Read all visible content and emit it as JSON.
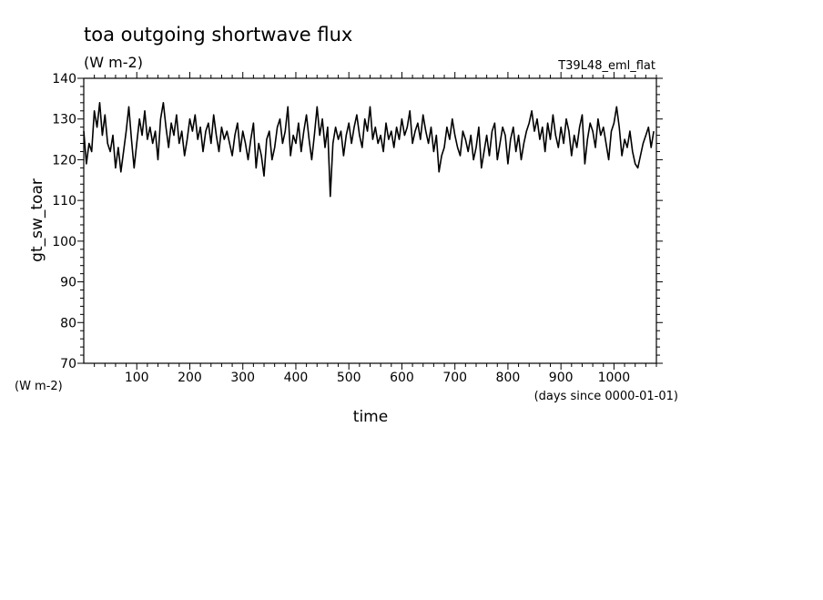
{
  "chart_data": {
    "type": "line",
    "title": "toa outgoing shortwave flux",
    "subtitle": "(W m-2)",
    "run_label": "T39L48_eml_flat",
    "ylabel": "gt_sw_toar",
    "y_unit_label": "(W m-2)",
    "xlabel": "time",
    "x_unit_label": "(days since 0000-01-01)",
    "xlim": [
      0,
      1080
    ],
    "ylim": [
      70,
      140
    ],
    "x_ticks": [
      100,
      200,
      300,
      400,
      500,
      600,
      700,
      800,
      900,
      1000
    ],
    "y_ticks": [
      70,
      80,
      90,
      100,
      110,
      120,
      130,
      140
    ],
    "grid": false,
    "series": [
      {
        "color": "#000000",
        "x": [
          0,
          5,
          10,
          15,
          20,
          25,
          30,
          35,
          40,
          45,
          50,
          55,
          60,
          65,
          70,
          75,
          80,
          85,
          90,
          95,
          100,
          105,
          110,
          115,
          120,
          125,
          130,
          135,
          140,
          145,
          150,
          155,
          160,
          165,
          170,
          175,
          180,
          185,
          190,
          195,
          200,
          205,
          210,
          215,
          220,
          225,
          230,
          235,
          240,
          245,
          250,
          255,
          260,
          265,
          270,
          275,
          280,
          285,
          290,
          295,
          300,
          305,
          310,
          315,
          320,
          325,
          330,
          335,
          340,
          345,
          350,
          355,
          360,
          365,
          370,
          375,
          380,
          385,
          390,
          395,
          400,
          405,
          410,
          415,
          420,
          425,
          430,
          435,
          440,
          445,
          450,
          455,
          460,
          465,
          470,
          475,
          480,
          485,
          490,
          495,
          500,
          505,
          510,
          515,
          520,
          525,
          530,
          535,
          540,
          545,
          550,
          555,
          560,
          565,
          570,
          575,
          580,
          585,
          590,
          595,
          600,
          605,
          610,
          615,
          620,
          625,
          630,
          635,
          640,
          645,
          650,
          655,
          660,
          665,
          670,
          675,
          680,
          685,
          690,
          695,
          700,
          705,
          710,
          715,
          720,
          725,
          730,
          735,
          740,
          745,
          750,
          755,
          760,
          765,
          770,
          775,
          780,
          785,
          790,
          795,
          800,
          805,
          810,
          815,
          820,
          825,
          830,
          835,
          840,
          845,
          850,
          855,
          860,
          865,
          870,
          875,
          880,
          885,
          890,
          895,
          900,
          905,
          910,
          915,
          920,
          925,
          930,
          935,
          940,
          945,
          950,
          955,
          960,
          965,
          970,
          975,
          980,
          985,
          990,
          995,
          1000,
          1005,
          1010,
          1015,
          1020,
          1025,
          1030,
          1035,
          1040,
          1045,
          1050,
          1055,
          1060,
          1065,
          1070,
          1075
        ],
        "values": [
          127,
          119,
          124,
          122,
          132,
          128,
          134,
          126,
          131,
          124,
          122,
          126,
          118,
          123,
          117,
          122,
          127,
          133,
          125,
          118,
          124,
          130,
          126,
          132,
          125,
          128,
          124,
          127,
          120,
          130,
          134,
          128,
          123,
          129,
          126,
          131,
          124,
          127,
          121,
          125,
          130,
          127,
          131,
          125,
          128,
          122,
          127,
          129,
          124,
          131,
          126,
          122,
          128,
          125,
          127,
          124,
          121,
          126,
          129,
          122,
          127,
          124,
          120,
          125,
          129,
          118,
          124,
          121,
          116,
          125,
          127,
          120,
          123,
          128,
          130,
          124,
          127,
          133,
          121,
          126,
          124,
          129,
          122,
          127,
          131,
          125,
          120,
          126,
          133,
          126,
          130,
          123,
          128,
          111,
          124,
          128,
          125,
          127,
          121,
          126,
          129,
          124,
          128,
          131,
          126,
          123,
          130,
          127,
          133,
          125,
          128,
          124,
          126,
          122,
          129,
          125,
          127,
          123,
          128,
          125,
          130,
          126,
          128,
          132,
          124,
          127,
          129,
          125,
          131,
          127,
          124,
          128,
          122,
          126,
          117,
          121,
          123,
          128,
          125,
          130,
          126,
          123,
          121,
          127,
          125,
          122,
          126,
          120,
          123,
          128,
          118,
          122,
          126,
          121,
          127,
          129,
          120,
          124,
          128,
          126,
          119,
          125,
          128,
          122,
          126,
          120,
          124,
          127,
          129,
          132,
          127,
          130,
          125,
          128,
          122,
          129,
          125,
          131,
          126,
          123,
          128,
          124,
          130,
          127,
          121,
          126,
          123,
          128,
          131,
          119,
          125,
          129,
          127,
          123,
          130,
          126,
          128,
          124,
          120,
          127,
          129,
          133,
          128,
          121,
          125,
          123,
          127,
          122,
          119,
          118,
          121,
          124,
          126,
          128,
          123,
          127
        ]
      }
    ]
  }
}
